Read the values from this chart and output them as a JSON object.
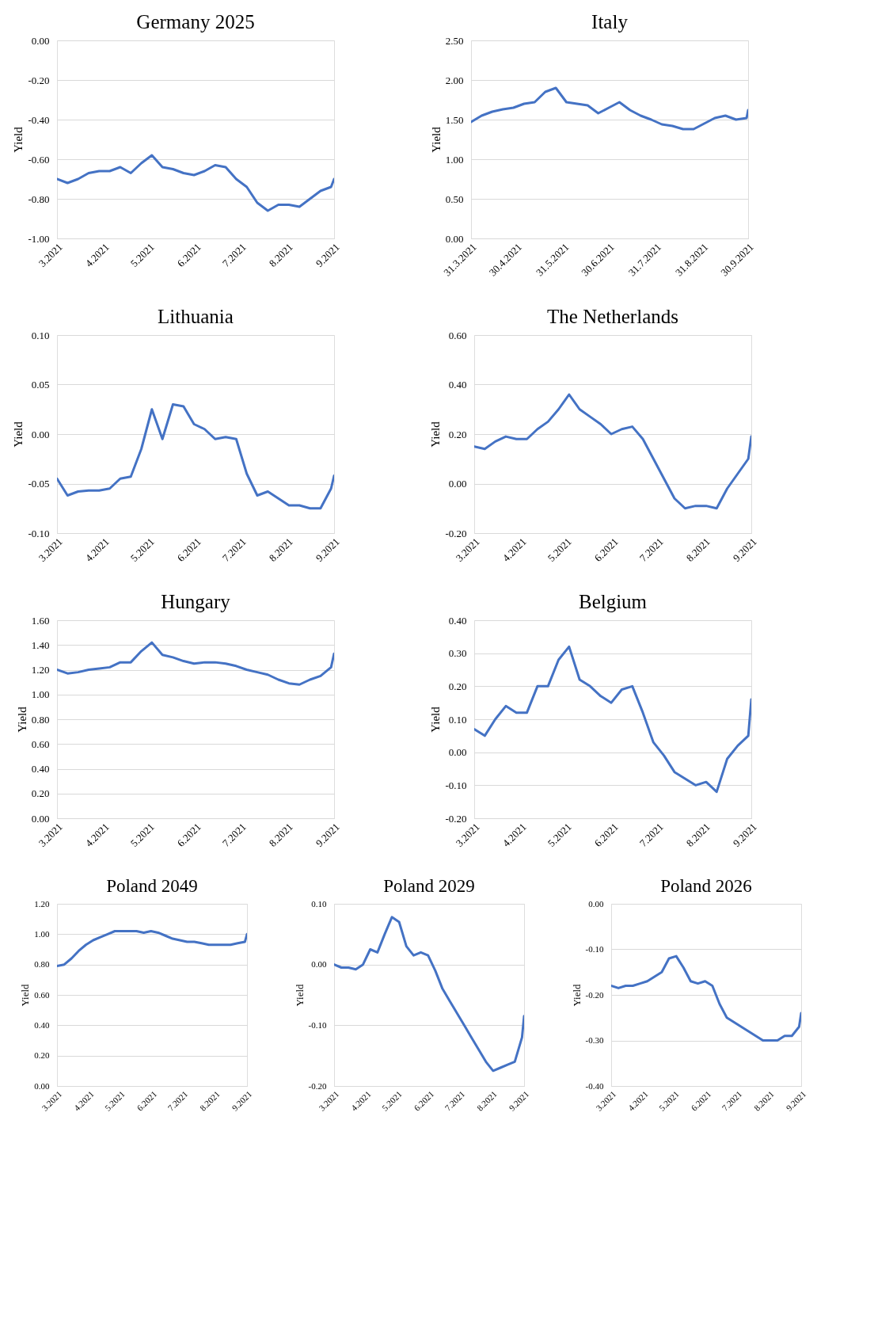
{
  "chart_data": [
    {
      "type": "line",
      "title": "Germany  2025",
      "ylabel": "Yield",
      "grid": "y",
      "x": [
        "2021-03-01",
        "2021-03-08",
        "2021-03-15",
        "2021-03-22",
        "2021-03-29",
        "2021-04-05",
        "2021-04-12",
        "2021-04-19",
        "2021-04-26",
        "2021-05-03",
        "2021-05-10",
        "2021-05-17",
        "2021-05-24",
        "2021-05-31",
        "2021-06-07",
        "2021-06-14",
        "2021-06-21",
        "2021-06-28",
        "2021-07-05",
        "2021-07-12",
        "2021-07-19",
        "2021-07-26",
        "2021-08-02",
        "2021-08-09",
        "2021-08-16",
        "2021-08-23",
        "2021-08-30",
        "2021-09-01"
      ],
      "series": [
        {
          "color": "#4472c4",
          "values": [
            -0.7,
            -0.72,
            -0.7,
            -0.67,
            -0.66,
            -0.66,
            -0.64,
            -0.67,
            -0.62,
            -0.58,
            -0.64,
            -0.65,
            -0.67,
            -0.68,
            -0.66,
            -0.63,
            -0.64,
            -0.7,
            -0.74,
            -0.82,
            -0.86,
            -0.83,
            -0.83,
            -0.84,
            -0.8,
            -0.76,
            -0.74,
            -0.7
          ]
        }
      ],
      "xlim": [
        "2021-03-01",
        "2021-09-01"
      ],
      "xticks": [
        {
          "value": "2021-03-01",
          "label": "3.2021"
        },
        {
          "value": "2021-04-01",
          "label": "4.2021"
        },
        {
          "value": "2021-05-01",
          "label": "5.2021"
        },
        {
          "value": "2021-06-01",
          "label": "6.2021"
        },
        {
          "value": "2021-07-01",
          "label": "7.2021"
        },
        {
          "value": "2021-08-01",
          "label": "8.2021"
        },
        {
          "value": "2021-09-01",
          "label": "9.2021"
        }
      ],
      "ylim": [
        -1.0,
        0.0
      ],
      "yticks": [
        {
          "value": -1.0,
          "label": "-1.00"
        },
        {
          "value": -0.8,
          "label": "-0.80"
        },
        {
          "value": -0.6,
          "label": "-0.60"
        },
        {
          "value": -0.4,
          "label": "-0.40"
        },
        {
          "value": -0.2,
          "label": "-0.20"
        },
        {
          "value": 0.0,
          "label": "0.00"
        }
      ]
    },
    {
      "type": "line",
      "title": "Italy",
      "ylabel": "Yield",
      "grid": "y",
      "x": [
        "2021-03-31",
        "2021-04-07",
        "2021-04-14",
        "2021-04-21",
        "2021-04-28",
        "2021-05-05",
        "2021-05-12",
        "2021-05-19",
        "2021-05-26",
        "2021-06-02",
        "2021-06-09",
        "2021-06-16",
        "2021-06-23",
        "2021-06-30",
        "2021-07-07",
        "2021-07-14",
        "2021-07-21",
        "2021-07-28",
        "2021-08-04",
        "2021-08-11",
        "2021-08-18",
        "2021-08-25",
        "2021-09-01",
        "2021-09-08",
        "2021-09-15",
        "2021-09-22",
        "2021-09-29",
        "2021-09-30"
      ],
      "series": [
        {
          "color": "#4472c4",
          "values": [
            1.47,
            1.55,
            1.6,
            1.63,
            1.65,
            1.7,
            1.72,
            1.85,
            1.9,
            1.72,
            1.7,
            1.68,
            1.58,
            1.65,
            1.72,
            1.62,
            1.55,
            1.5,
            1.44,
            1.42,
            1.38,
            1.38,
            1.45,
            1.52,
            1.55,
            1.5,
            1.52,
            1.62
          ]
        }
      ],
      "xlim": [
        "2021-03-31",
        "2021-09-30"
      ],
      "xticks": [
        {
          "value": "2021-03-31",
          "label": "31.3.2021"
        },
        {
          "value": "2021-04-30",
          "label": "30.4.2021"
        },
        {
          "value": "2021-05-31",
          "label": "31.5.2021"
        },
        {
          "value": "2021-06-30",
          "label": "30.6.2021"
        },
        {
          "value": "2021-07-31",
          "label": "31.7.2021"
        },
        {
          "value": "2021-08-31",
          "label": "31.8.2021"
        },
        {
          "value": "2021-09-30",
          "label": "30.9.2021"
        }
      ],
      "ylim": [
        0.0,
        2.5
      ],
      "yticks": [
        {
          "value": 0.0,
          "label": "0.00"
        },
        {
          "value": 0.5,
          "label": "0.50"
        },
        {
          "value": 1.0,
          "label": "1.00"
        },
        {
          "value": 1.5,
          "label": "1.50"
        },
        {
          "value": 2.0,
          "label": "2.00"
        },
        {
          "value": 2.5,
          "label": "2.50"
        }
      ]
    },
    {
      "type": "line",
      "title": "Lithuania",
      "ylabel": "Yield",
      "grid": "y",
      "x": [
        "2021-03-01",
        "2021-03-08",
        "2021-03-15",
        "2021-03-22",
        "2021-03-29",
        "2021-04-05",
        "2021-04-12",
        "2021-04-19",
        "2021-04-26",
        "2021-05-03",
        "2021-05-10",
        "2021-05-17",
        "2021-05-24",
        "2021-05-31",
        "2021-06-07",
        "2021-06-14",
        "2021-06-21",
        "2021-06-28",
        "2021-07-05",
        "2021-07-12",
        "2021-07-19",
        "2021-07-26",
        "2021-08-02",
        "2021-08-09",
        "2021-08-16",
        "2021-08-23",
        "2021-08-30",
        "2021-09-01"
      ],
      "series": [
        {
          "color": "#4472c4",
          "values": [
            -0.045,
            -0.062,
            -0.058,
            -0.057,
            -0.057,
            -0.055,
            -0.045,
            -0.043,
            -0.015,
            0.025,
            -0.005,
            0.03,
            0.028,
            0.01,
            0.005,
            -0.005,
            -0.003,
            -0.005,
            -0.04,
            -0.062,
            -0.058,
            -0.065,
            -0.072,
            -0.072,
            -0.075,
            -0.075,
            -0.055,
            -0.042
          ]
        }
      ],
      "xlim": [
        "2021-03-01",
        "2021-09-01"
      ],
      "xticks": [
        {
          "value": "2021-03-01",
          "label": "3.2021"
        },
        {
          "value": "2021-04-01",
          "label": "4.2021"
        },
        {
          "value": "2021-05-01",
          "label": "5.2021"
        },
        {
          "value": "2021-06-01",
          "label": "6.2021"
        },
        {
          "value": "2021-07-01",
          "label": "7.2021"
        },
        {
          "value": "2021-08-01",
          "label": "8.2021"
        },
        {
          "value": "2021-09-01",
          "label": "9.2021"
        }
      ],
      "ylim": [
        -0.1,
        0.1
      ],
      "yticks": [
        {
          "value": -0.1,
          "label": "-0.10"
        },
        {
          "value": -0.05,
          "label": "-0.05"
        },
        {
          "value": 0.0,
          "label": "0.00"
        },
        {
          "value": 0.05,
          "label": "0.05"
        },
        {
          "value": 0.1,
          "label": "0.10"
        }
      ]
    },
    {
      "type": "line",
      "title": "The Netherlands",
      "ylabel": "Yield",
      "grid": "y",
      "x": [
        "2021-03-01",
        "2021-03-08",
        "2021-03-15",
        "2021-03-22",
        "2021-03-29",
        "2021-04-05",
        "2021-04-12",
        "2021-04-19",
        "2021-04-26",
        "2021-05-03",
        "2021-05-10",
        "2021-05-17",
        "2021-05-24",
        "2021-05-31",
        "2021-06-07",
        "2021-06-14",
        "2021-06-21",
        "2021-06-28",
        "2021-07-05",
        "2021-07-12",
        "2021-07-19",
        "2021-07-26",
        "2021-08-02",
        "2021-08-09",
        "2021-08-16",
        "2021-08-23",
        "2021-08-30",
        "2021-09-01"
      ],
      "series": [
        {
          "color": "#4472c4",
          "values": [
            0.15,
            0.14,
            0.17,
            0.19,
            0.18,
            0.18,
            0.22,
            0.25,
            0.3,
            0.36,
            0.3,
            0.27,
            0.24,
            0.2,
            0.22,
            0.23,
            0.18,
            0.1,
            0.02,
            -0.06,
            -0.1,
            -0.09,
            -0.09,
            -0.1,
            -0.02,
            0.04,
            0.1,
            0.19
          ]
        }
      ],
      "xlim": [
        "2021-03-01",
        "2021-09-01"
      ],
      "xticks": [
        {
          "value": "2021-03-01",
          "label": "3.2021"
        },
        {
          "value": "2021-04-01",
          "label": "4.2021"
        },
        {
          "value": "2021-05-01",
          "label": "5.2021"
        },
        {
          "value": "2021-06-01",
          "label": "6.2021"
        },
        {
          "value": "2021-07-01",
          "label": "7.2021"
        },
        {
          "value": "2021-08-01",
          "label": "8.2021"
        },
        {
          "value": "2021-09-01",
          "label": "9.2021"
        }
      ],
      "ylim": [
        -0.2,
        0.6
      ],
      "yticks": [
        {
          "value": -0.2,
          "label": "-0.20"
        },
        {
          "value": 0.0,
          "label": "0.00"
        },
        {
          "value": 0.2,
          "label": "0.20"
        },
        {
          "value": 0.4,
          "label": "0.40"
        },
        {
          "value": 0.6,
          "label": "0.60"
        }
      ]
    },
    {
      "type": "line",
      "title": "Hungary",
      "ylabel": "Yield",
      "grid": "y",
      "x": [
        "2021-03-01",
        "2021-03-08",
        "2021-03-15",
        "2021-03-22",
        "2021-03-29",
        "2021-04-05",
        "2021-04-12",
        "2021-04-19",
        "2021-04-26",
        "2021-05-03",
        "2021-05-10",
        "2021-05-17",
        "2021-05-24",
        "2021-05-31",
        "2021-06-07",
        "2021-06-14",
        "2021-06-21",
        "2021-06-28",
        "2021-07-05",
        "2021-07-12",
        "2021-07-19",
        "2021-07-26",
        "2021-08-02",
        "2021-08-09",
        "2021-08-16",
        "2021-08-23",
        "2021-08-30",
        "2021-09-01"
      ],
      "series": [
        {
          "color": "#4472c4",
          "values": [
            1.2,
            1.17,
            1.18,
            1.2,
            1.21,
            1.22,
            1.26,
            1.26,
            1.35,
            1.42,
            1.32,
            1.3,
            1.27,
            1.25,
            1.26,
            1.26,
            1.25,
            1.23,
            1.2,
            1.18,
            1.16,
            1.12,
            1.09,
            1.08,
            1.12,
            1.15,
            1.22,
            1.33
          ]
        }
      ],
      "xlim": [
        "2021-03-01",
        "2021-09-01"
      ],
      "xticks": [
        {
          "value": "2021-03-01",
          "label": "3.2021"
        },
        {
          "value": "2021-04-01",
          "label": "4.2021"
        },
        {
          "value": "2021-05-01",
          "label": "5.2021"
        },
        {
          "value": "2021-06-01",
          "label": "6.2021"
        },
        {
          "value": "2021-07-01",
          "label": "7.2021"
        },
        {
          "value": "2021-08-01",
          "label": "8.2021"
        },
        {
          "value": "2021-09-01",
          "label": "9.2021"
        }
      ],
      "ylim": [
        0.0,
        1.6
      ],
      "yticks": [
        {
          "value": 0.0,
          "label": "0.00"
        },
        {
          "value": 0.2,
          "label": "0.20"
        },
        {
          "value": 0.4,
          "label": "0.40"
        },
        {
          "value": 0.6,
          "label": "0.60"
        },
        {
          "value": 0.8,
          "label": "0.80"
        },
        {
          "value": 1.0,
          "label": "1.00"
        },
        {
          "value": 1.2,
          "label": "1.20"
        },
        {
          "value": 1.4,
          "label": "1.40"
        },
        {
          "value": 1.6,
          "label": "1.60"
        }
      ]
    },
    {
      "type": "line",
      "title": "Belgium",
      "ylabel": "Yield",
      "grid": "y",
      "x": [
        "2021-03-01",
        "2021-03-08",
        "2021-03-15",
        "2021-03-22",
        "2021-03-29",
        "2021-04-05",
        "2021-04-12",
        "2021-04-19",
        "2021-04-26",
        "2021-05-03",
        "2021-05-10",
        "2021-05-17",
        "2021-05-24",
        "2021-05-31",
        "2021-06-07",
        "2021-06-14",
        "2021-06-21",
        "2021-06-28",
        "2021-07-05",
        "2021-07-12",
        "2021-07-19",
        "2021-07-26",
        "2021-08-02",
        "2021-08-09",
        "2021-08-16",
        "2021-08-23",
        "2021-08-30",
        "2021-09-01"
      ],
      "series": [
        {
          "color": "#4472c4",
          "values": [
            0.07,
            0.05,
            0.1,
            0.14,
            0.12,
            0.12,
            0.2,
            0.2,
            0.28,
            0.32,
            0.22,
            0.2,
            0.17,
            0.15,
            0.19,
            0.2,
            0.12,
            0.03,
            -0.01,
            -0.06,
            -0.08,
            -0.1,
            -0.09,
            -0.12,
            -0.02,
            0.02,
            0.05,
            0.16
          ]
        }
      ],
      "xlim": [
        "2021-03-01",
        "2021-09-01"
      ],
      "xticks": [
        {
          "value": "2021-03-01",
          "label": "3.2021"
        },
        {
          "value": "2021-04-01",
          "label": "4.2021"
        },
        {
          "value": "2021-05-01",
          "label": "5.2021"
        },
        {
          "value": "2021-06-01",
          "label": "6.2021"
        },
        {
          "value": "2021-07-01",
          "label": "7.2021"
        },
        {
          "value": "2021-08-01",
          "label": "8.2021"
        },
        {
          "value": "2021-09-01",
          "label": "9.2021"
        }
      ],
      "ylim": [
        -0.2,
        0.4
      ],
      "yticks": [
        {
          "value": -0.2,
          "label": "-0.20"
        },
        {
          "value": -0.1,
          "label": "-0.10"
        },
        {
          "value": 0.0,
          "label": "0.00"
        },
        {
          "value": 0.1,
          "label": "0.10"
        },
        {
          "value": 0.2,
          "label": "0.20"
        },
        {
          "value": 0.3,
          "label": "0.30"
        },
        {
          "value": 0.4,
          "label": "0.40"
        }
      ]
    },
    {
      "type": "line",
      "title": "Poland 2049",
      "ylabel": "Yield",
      "grid": "y",
      "x": [
        "2021-03-01",
        "2021-03-08",
        "2021-03-15",
        "2021-03-22",
        "2021-03-29",
        "2021-04-05",
        "2021-04-12",
        "2021-04-19",
        "2021-04-26",
        "2021-05-03",
        "2021-05-10",
        "2021-05-17",
        "2021-05-24",
        "2021-05-31",
        "2021-06-07",
        "2021-06-14",
        "2021-06-21",
        "2021-06-28",
        "2021-07-05",
        "2021-07-12",
        "2021-07-19",
        "2021-07-26",
        "2021-08-02",
        "2021-08-09",
        "2021-08-16",
        "2021-08-23",
        "2021-08-30",
        "2021-09-01"
      ],
      "series": [
        {
          "color": "#4472c4",
          "values": [
            0.79,
            0.8,
            0.84,
            0.89,
            0.93,
            0.96,
            0.98,
            1.0,
            1.02,
            1.02,
            1.02,
            1.02,
            1.01,
            1.02,
            1.01,
            0.99,
            0.97,
            0.96,
            0.95,
            0.95,
            0.94,
            0.93,
            0.93,
            0.93,
            0.93,
            0.94,
            0.95,
            1.0
          ]
        }
      ],
      "xlim": [
        "2021-03-01",
        "2021-09-01"
      ],
      "xticks": [
        {
          "value": "2021-03-01",
          "label": "3.2021"
        },
        {
          "value": "2021-04-01",
          "label": "4.2021"
        },
        {
          "value": "2021-05-01",
          "label": "5.2021"
        },
        {
          "value": "2021-06-01",
          "label": "6.2021"
        },
        {
          "value": "2021-07-01",
          "label": "7.2021"
        },
        {
          "value": "2021-08-01",
          "label": "8.2021"
        },
        {
          "value": "2021-09-01",
          "label": "9.2021"
        }
      ],
      "ylim": [
        0.0,
        1.2
      ],
      "yticks": [
        {
          "value": 0.0,
          "label": "0.00"
        },
        {
          "value": 0.2,
          "label": "0.20"
        },
        {
          "value": 0.4,
          "label": "0.40"
        },
        {
          "value": 0.6,
          "label": "0.60"
        },
        {
          "value": 0.8,
          "label": "0.80"
        },
        {
          "value": 1.0,
          "label": "1.00"
        },
        {
          "value": 1.2,
          "label": "1.20"
        }
      ]
    },
    {
      "type": "line",
      "title": "Poland 2029",
      "ylabel": "Yield",
      "grid": "y",
      "x": [
        "2021-03-01",
        "2021-03-08",
        "2021-03-15",
        "2021-03-22",
        "2021-03-29",
        "2021-04-05",
        "2021-04-12",
        "2021-04-19",
        "2021-04-26",
        "2021-05-03",
        "2021-05-10",
        "2021-05-17",
        "2021-05-24",
        "2021-05-31",
        "2021-06-07",
        "2021-06-14",
        "2021-06-21",
        "2021-06-28",
        "2021-07-05",
        "2021-07-12",
        "2021-07-19",
        "2021-07-26",
        "2021-08-02",
        "2021-08-09",
        "2021-08-16",
        "2021-08-23",
        "2021-08-30",
        "2021-09-01"
      ],
      "series": [
        {
          "color": "#4472c4",
          "values": [
            0.0,
            -0.005,
            -0.005,
            -0.008,
            0.0,
            0.025,
            0.02,
            0.05,
            0.078,
            0.07,
            0.03,
            0.015,
            0.02,
            0.015,
            -0.01,
            -0.04,
            -0.06,
            -0.08,
            -0.1,
            -0.12,
            -0.14,
            -0.16,
            -0.175,
            -0.17,
            -0.165,
            -0.16,
            -0.12,
            -0.085
          ]
        }
      ],
      "xlim": [
        "2021-03-01",
        "2021-09-01"
      ],
      "xticks": [
        {
          "value": "2021-03-01",
          "label": "3.2021"
        },
        {
          "value": "2021-04-01",
          "label": "4.2021"
        },
        {
          "value": "2021-05-01",
          "label": "5.2021"
        },
        {
          "value": "2021-06-01",
          "label": "6.2021"
        },
        {
          "value": "2021-07-01",
          "label": "7.2021"
        },
        {
          "value": "2021-08-01",
          "label": "8.2021"
        },
        {
          "value": "2021-09-01",
          "label": "9.2021"
        }
      ],
      "ylim": [
        -0.2,
        0.1
      ],
      "yticks": [
        {
          "value": -0.2,
          "label": "-0.20"
        },
        {
          "value": -0.1,
          "label": "-0.10"
        },
        {
          "value": 0.0,
          "label": "0.00"
        },
        {
          "value": 0.1,
          "label": "0.10"
        }
      ]
    },
    {
      "type": "line",
      "title": "Poland 2026",
      "ylabel": "Yield",
      "grid": "y",
      "x": [
        "2021-03-01",
        "2021-03-08",
        "2021-03-15",
        "2021-03-22",
        "2021-03-29",
        "2021-04-05",
        "2021-04-12",
        "2021-04-19",
        "2021-04-26",
        "2021-05-03",
        "2021-05-10",
        "2021-05-17",
        "2021-05-24",
        "2021-05-31",
        "2021-06-07",
        "2021-06-14",
        "2021-06-21",
        "2021-06-28",
        "2021-07-05",
        "2021-07-12",
        "2021-07-19",
        "2021-07-26",
        "2021-08-02",
        "2021-08-09",
        "2021-08-16",
        "2021-08-23",
        "2021-08-30",
        "2021-09-01"
      ],
      "series": [
        {
          "color": "#4472c4",
          "values": [
            -0.18,
            -0.185,
            -0.18,
            -0.18,
            -0.175,
            -0.17,
            -0.16,
            -0.15,
            -0.12,
            -0.115,
            -0.14,
            -0.17,
            -0.175,
            -0.17,
            -0.18,
            -0.22,
            -0.25,
            -0.26,
            -0.27,
            -0.28,
            -0.29,
            -0.3,
            -0.3,
            -0.3,
            -0.29,
            -0.29,
            -0.27,
            -0.24
          ]
        }
      ],
      "xlim": [
        "2021-03-01",
        "2021-09-01"
      ],
      "xticks": [
        {
          "value": "2021-03-01",
          "label": "3.2021"
        },
        {
          "value": "2021-04-01",
          "label": "4.2021"
        },
        {
          "value": "2021-05-01",
          "label": "5.2021"
        },
        {
          "value": "2021-06-01",
          "label": "6.2021"
        },
        {
          "value": "2021-07-01",
          "label": "7.2021"
        },
        {
          "value": "2021-08-01",
          "label": "8.2021"
        },
        {
          "value": "2021-09-01",
          "label": "9.2021"
        }
      ],
      "ylim": [
        -0.4,
        0.0
      ],
      "yticks": [
        {
          "value": -0.4,
          "label": "-0.40"
        },
        {
          "value": -0.3,
          "label": "-0.30"
        },
        {
          "value": -0.2,
          "label": "-0.20"
        },
        {
          "value": -0.1,
          "label": "-0.10"
        },
        {
          "value": 0.0,
          "label": "0.00"
        }
      ]
    }
  ]
}
